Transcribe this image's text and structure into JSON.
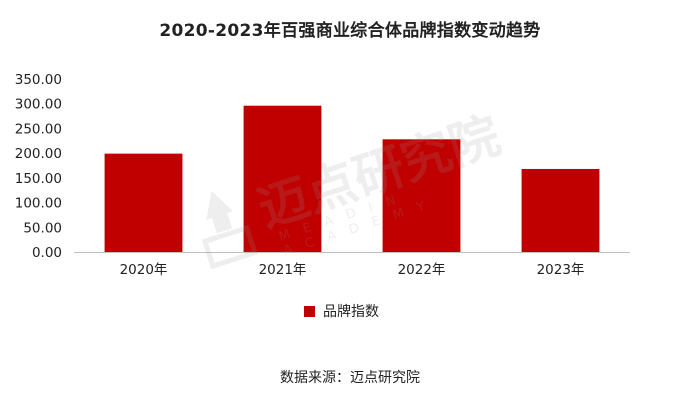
{
  "chart_data": {
    "type": "bar",
    "title": "2020-2023年百强商业综合体品牌指数变动趋势",
    "categories": [
      "2020年",
      "2021年",
      "2022年",
      "2023年"
    ],
    "series": [
      {
        "name": "品牌指数",
        "values": [
          199,
          296,
          228,
          168
        ]
      }
    ],
    "ylim": [
      0,
      350
    ],
    "yticks": [
      "0.00",
      "50.00",
      "100.00",
      "150.00",
      "200.00",
      "250.00",
      "300.00",
      "350.00"
    ],
    "grid": false,
    "legend": "bottom",
    "color": "#C00000"
  },
  "source": "数据来源：迈点研究院",
  "watermark": {
    "text": "迈点研究院",
    "subtext": "MEADIN ACADEMY"
  }
}
